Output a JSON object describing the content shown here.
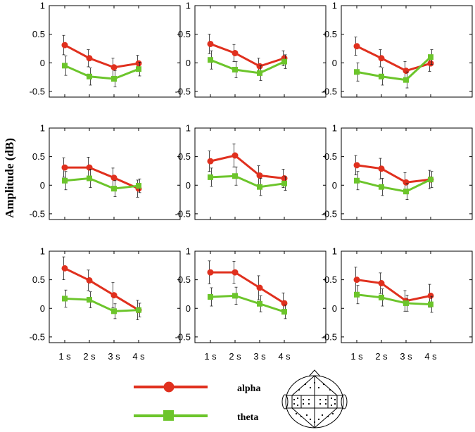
{
  "figure": {
    "ylabel": "Amplitude (dB)",
    "legend": [
      {
        "label": "alpha",
        "color": "#e0301e",
        "marker": "circle"
      },
      {
        "label": "theta",
        "color": "#6cc52b",
        "marker": "square"
      }
    ],
    "head_map_label": "head-electrode-map"
  },
  "chart_data": [
    {
      "type": "line",
      "panel": "row1-col1",
      "categories": [
        "1 s",
        "2 s",
        "3 s",
        "4 s"
      ],
      "ylim": [
        -0.6,
        1
      ],
      "yticks": [
        -0.5,
        0,
        0.5,
        1
      ],
      "series": [
        {
          "name": "alpha",
          "values": [
            0.31,
            0.08,
            -0.08,
            -0.01
          ],
          "errors": [
            0.17,
            0.15,
            0.16,
            0.14
          ]
        },
        {
          "name": "theta",
          "values": [
            -0.05,
            -0.24,
            -0.28,
            -0.11
          ],
          "errors": [
            0.17,
            0.15,
            0.14,
            0.12
          ]
        }
      ]
    },
    {
      "type": "line",
      "panel": "row1-col2",
      "categories": [
        "1 s",
        "2 s",
        "3 s",
        "4 s"
      ],
      "ylim": [
        -0.6,
        1
      ],
      "yticks": [
        -0.5,
        0,
        0.5,
        1
      ],
      "series": [
        {
          "name": "alpha",
          "values": [
            0.33,
            0.17,
            -0.06,
            0.08
          ],
          "errors": [
            0.17,
            0.15,
            0.14,
            0.13
          ]
        },
        {
          "name": "theta",
          "values": [
            0.05,
            -0.12,
            -0.18,
            0.02
          ],
          "errors": [
            0.16,
            0.14,
            0.13,
            0.12
          ]
        }
      ]
    },
    {
      "type": "line",
      "panel": "row1-col3",
      "categories": [
        "1 s",
        "2 s",
        "3 s",
        "4 s"
      ],
      "ylim": [
        -0.6,
        1
      ],
      "yticks": [
        -0.5,
        0,
        0.5,
        1
      ],
      "series": [
        {
          "name": "alpha",
          "values": [
            0.29,
            0.08,
            -0.14,
            -0.01
          ],
          "errors": [
            0.16,
            0.15,
            0.16,
            0.14
          ]
        },
        {
          "name": "theta",
          "values": [
            -0.16,
            -0.24,
            -0.3,
            0.1
          ],
          "errors": [
            0.16,
            0.15,
            0.14,
            0.13
          ]
        }
      ]
    },
    {
      "type": "line",
      "panel": "row2-col1",
      "categories": [
        "1 s",
        "2 s",
        "3 s",
        "4 s"
      ],
      "ylim": [
        -0.6,
        1
      ],
      "yticks": [
        -0.5,
        0,
        0.5,
        1
      ],
      "series": [
        {
          "name": "alpha",
          "values": [
            0.31,
            0.31,
            0.13,
            -0.06
          ],
          "errors": [
            0.17,
            0.18,
            0.17,
            0.15
          ]
        },
        {
          "name": "theta",
          "values": [
            0.08,
            0.12,
            -0.06,
            -0.01
          ],
          "errors": [
            0.16,
            0.16,
            0.14,
            0.12
          ]
        }
      ]
    },
    {
      "type": "line",
      "panel": "row2-col2",
      "categories": [
        "1 s",
        "2 s",
        "3 s",
        "4 s"
      ],
      "ylim": [
        -0.6,
        1
      ],
      "yticks": [
        -0.5,
        0,
        0.5,
        1
      ],
      "series": [
        {
          "name": "alpha",
          "values": [
            0.42,
            0.52,
            0.17,
            0.12
          ],
          "errors": [
            0.18,
            0.2,
            0.17,
            0.16
          ]
        },
        {
          "name": "theta",
          "values": [
            0.14,
            0.16,
            -0.03,
            0.03
          ],
          "errors": [
            0.16,
            0.16,
            0.15,
            0.12
          ]
        }
      ]
    },
    {
      "type": "line",
      "panel": "row2-col3",
      "categories": [
        "1 s",
        "2 s",
        "3 s",
        "4 s"
      ],
      "ylim": [
        -0.6,
        1
      ],
      "yticks": [
        -0.5,
        0,
        0.5,
        1
      ],
      "series": [
        {
          "name": "alpha",
          "values": [
            0.35,
            0.29,
            0.05,
            0.1
          ],
          "errors": [
            0.17,
            0.18,
            0.17,
            0.16
          ]
        },
        {
          "name": "theta",
          "values": [
            0.08,
            -0.03,
            -0.11,
            0.1
          ],
          "errors": [
            0.16,
            0.15,
            0.14,
            0.14
          ]
        }
      ]
    },
    {
      "type": "line",
      "panel": "row3-col1",
      "categories": [
        "1 s",
        "2 s",
        "3 s",
        "4 s"
      ],
      "ylim": [
        -0.6,
        1
      ],
      "yticks": [
        -0.5,
        0,
        0.5,
        1
      ],
      "series": [
        {
          "name": "alpha",
          "values": [
            0.7,
            0.49,
            0.23,
            -0.03
          ],
          "errors": [
            0.2,
            0.18,
            0.22,
            0.17
          ]
        },
        {
          "name": "theta",
          "values": [
            0.17,
            0.15,
            -0.05,
            -0.03
          ],
          "errors": [
            0.15,
            0.14,
            0.13,
            0.12
          ]
        }
      ]
    },
    {
      "type": "line",
      "panel": "row3-col2",
      "categories": [
        "1 s",
        "2 s",
        "3 s",
        "4 s"
      ],
      "ylim": [
        -0.6,
        1
      ],
      "yticks": [
        -0.5,
        0,
        0.5,
        1
      ],
      "series": [
        {
          "name": "alpha",
          "values": [
            0.63,
            0.63,
            0.36,
            0.09
          ],
          "errors": [
            0.2,
            0.19,
            0.21,
            0.18
          ]
        },
        {
          "name": "theta",
          "values": [
            0.2,
            0.22,
            0.08,
            -0.06
          ],
          "errors": [
            0.16,
            0.15,
            0.14,
            0.12
          ]
        }
      ]
    },
    {
      "type": "line",
      "panel": "row3-col3",
      "categories": [
        "1 s",
        "2 s",
        "3 s",
        "4 s"
      ],
      "ylim": [
        -0.6,
        1
      ],
      "yticks": [
        -0.5,
        0,
        0.5,
        1
      ],
      "series": [
        {
          "name": "alpha",
          "values": [
            0.5,
            0.44,
            0.13,
            0.22
          ],
          "errors": [
            0.22,
            0.18,
            0.18,
            0.2
          ]
        },
        {
          "name": "theta",
          "values": [
            0.24,
            0.19,
            0.09,
            0.07
          ],
          "errors": [
            0.16,
            0.15,
            0.14,
            0.14
          ]
        }
      ]
    }
  ]
}
